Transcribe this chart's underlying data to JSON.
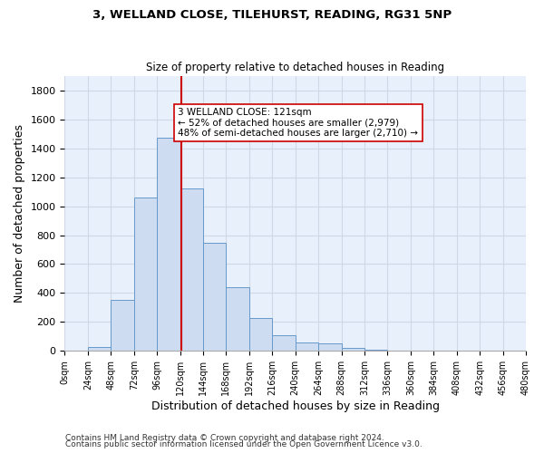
{
  "title": "3, WELLAND CLOSE, TILEHURST, READING, RG31 5NP",
  "subtitle": "Size of property relative to detached houses in Reading",
  "xlabel": "Distribution of detached houses by size in Reading",
  "ylabel": "Number of detached properties",
  "bar_color": "#cddcf0",
  "bar_edge_color": "#6699cc",
  "bins": [
    0,
    24,
    48,
    72,
    96,
    120,
    144,
    168,
    192,
    216,
    240,
    264,
    288,
    312,
    336,
    360,
    384,
    408,
    432,
    456,
    480
  ],
  "counts": [
    0,
    30,
    355,
    1060,
    1470,
    1120,
    745,
    440,
    228,
    110,
    57,
    50,
    20,
    12,
    0,
    0,
    0,
    0,
    0,
    0
  ],
  "property_size": 121,
  "vline_color": "#cc0000",
  "annotation_line1": "3 WELLAND CLOSE: 121sqm",
  "annotation_line2": "← 52% of detached houses are smaller (2,979)",
  "annotation_line3": "48% of semi-detached houses are larger (2,710) →",
  "annotation_box_color": "#ffffff",
  "annotation_box_edge": "#cc0000",
  "ylim": [
    0,
    1900
  ],
  "yticks": [
    0,
    200,
    400,
    600,
    800,
    1000,
    1200,
    1400,
    1600,
    1800
  ],
  "tick_labels": [
    "0sqm",
    "24sqm",
    "48sqm",
    "72sqm",
    "96sqm",
    "120sqm",
    "144sqm",
    "168sqm",
    "192sqm",
    "216sqm",
    "240sqm",
    "264sqm",
    "288sqm",
    "312sqm",
    "336sqm",
    "360sqm",
    "384sqm",
    "408sqm",
    "432sqm",
    "456sqm",
    "480sqm"
  ],
  "footnote1": "Contains HM Land Registry data © Crown copyright and database right 2024.",
  "footnote2": "Contains public sector information licensed under the Open Government Licence v3.0.",
  "bg_color": "#e8f0fb",
  "fig_bg_color": "#ffffff",
  "grid_color": "#d0d8e8"
}
